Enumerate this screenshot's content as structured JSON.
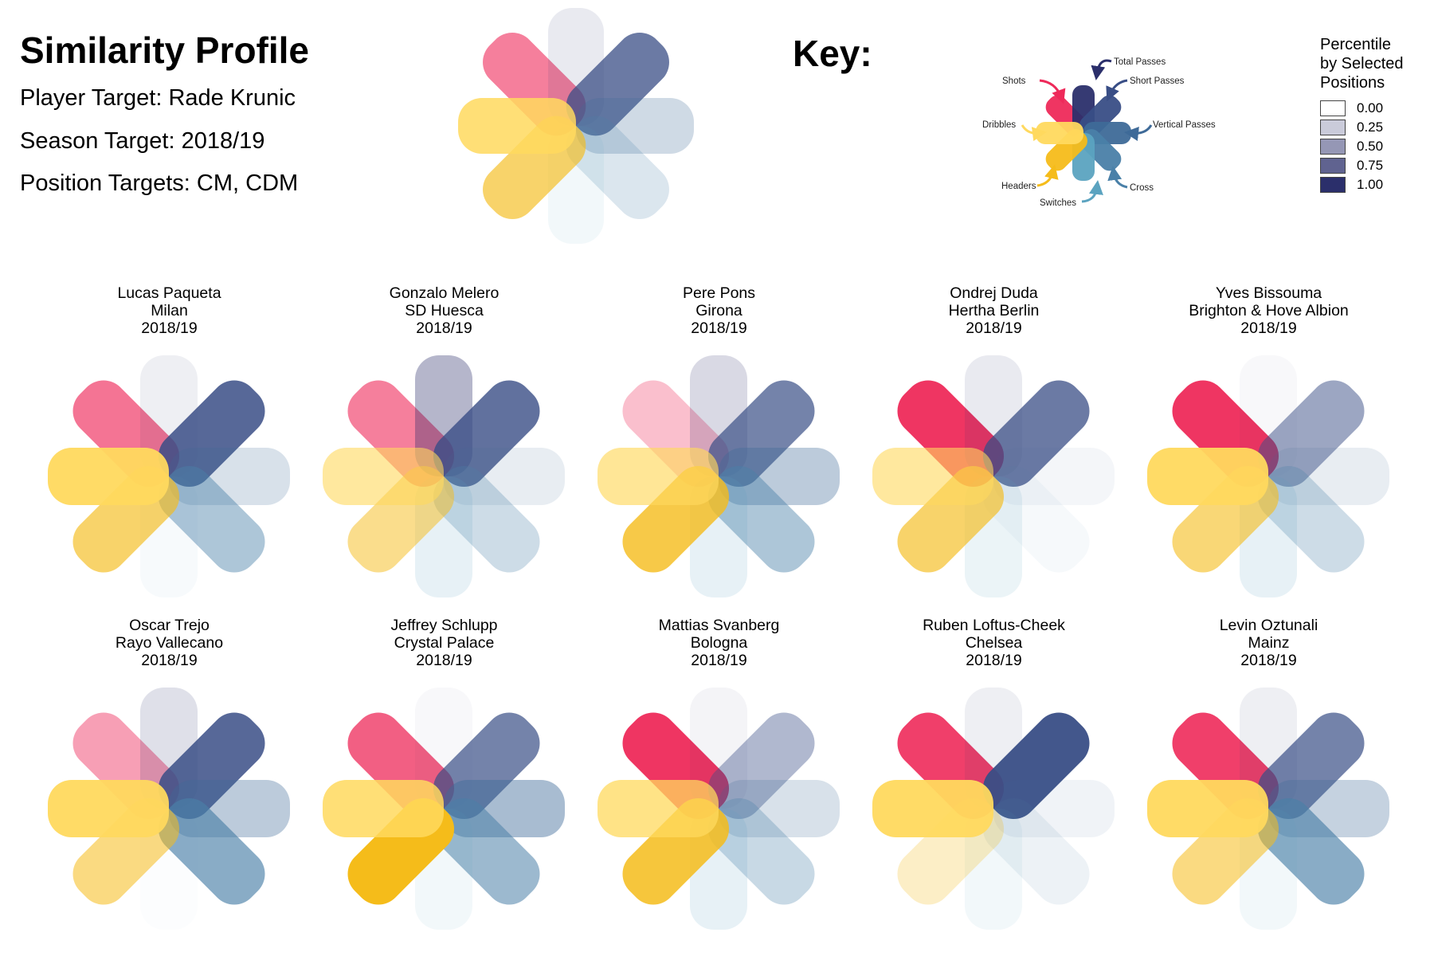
{
  "header": {
    "title": "Similarity Profile",
    "player_target": "Player Target: Rade Krunic",
    "season_target": "Season Target: 2018/19",
    "position_targets": "Position Targets: CM, CDM"
  },
  "key": {
    "title": "Key:",
    "labels": [
      "Shots",
      "Total Passes",
      "Short Passes",
      "Vertical Passes",
      "Cross",
      "Switches",
      "Headers",
      "Dribbles"
    ]
  },
  "legend": {
    "title_lines": [
      "Percentile",
      "by Selected",
      "Positions"
    ],
    "values": [
      "0.00",
      "0.25",
      "0.50",
      "0.75",
      "1.00"
    ],
    "color": "#2B2F6B"
  },
  "chart_data": {
    "type": "flower",
    "metrics": [
      "Shots",
      "Total Passes",
      "Short Passes",
      "Vertical Passes",
      "Cross",
      "Switches",
      "Headers",
      "Dribbles"
    ],
    "colors": [
      "#EE2A5A",
      "#2B2F6B",
      "#394E86",
      "#3E6A98",
      "#4A80A8",
      "#5BA3C0",
      "#F5BC1A",
      "#FFD95E"
    ],
    "value_scale": "percentile 0-1 shown as petal opacity",
    "target": {
      "name": "Rade Krunic",
      "values": [
        0.6,
        0.1,
        0.75,
        0.25,
        0.2,
        0.08,
        0.65,
        0.85
      ]
    },
    "players": [
      {
        "name": "Lucas Paqueta",
        "club": "Milan",
        "season": "2018/19",
        "values": [
          0.65,
          0.08,
          0.85,
          0.2,
          0.45,
          0.05,
          0.65,
          0.95
        ]
      },
      {
        "name": "Gonzalo Melero",
        "club": "SD Huesca",
        "season": "2018/19",
        "values": [
          0.6,
          0.35,
          0.8,
          0.12,
          0.28,
          0.15,
          0.5,
          0.6
        ]
      },
      {
        "name": "Pere Pons",
        "club": "Girona",
        "season": "2018/19",
        "values": [
          0.3,
          0.18,
          0.7,
          0.35,
          0.45,
          0.15,
          0.8,
          0.65
        ]
      },
      {
        "name": "Ondrej Duda",
        "club": "Hertha Berlin",
        "season": "2018/19",
        "values": [
          0.95,
          0.1,
          0.75,
          0.06,
          0.05,
          0.12,
          0.65,
          0.6
        ]
      },
      {
        "name": "Yves Bissouma",
        "club": "Brighton & Hove Albion",
        "season": "2018/19",
        "values": [
          0.95,
          0.03,
          0.5,
          0.12,
          0.28,
          0.15,
          0.6,
          0.95
        ]
      },
      {
        "name": "Oscar Trejo",
        "club": "Rayo Vallecano",
        "season": "2018/19",
        "values": [
          0.45,
          0.15,
          0.85,
          0.35,
          0.65,
          0.02,
          0.55,
          0.95
        ]
      },
      {
        "name": "Jeffrey Schlupp",
        "club": "Crystal Palace",
        "season": "2018/19",
        "values": [
          0.75,
          0.03,
          0.7,
          0.45,
          0.55,
          0.08,
          1.0,
          0.85
        ]
      },
      {
        "name": "Mattias Svanberg",
        "club": "Bologna",
        "season": "2018/19",
        "values": [
          0.95,
          0.05,
          0.4,
          0.2,
          0.3,
          0.15,
          0.85,
          0.75
        ]
      },
      {
        "name": "Ruben Loftus-Cheek",
        "club": "Chelsea",
        "season": "2018/19",
        "values": [
          0.9,
          0.08,
          0.95,
          0.08,
          0.1,
          0.08,
          0.25,
          0.95
        ]
      },
      {
        "name": "Levin Oztunali",
        "club": "Mainz",
        "season": "2018/19",
        "values": [
          0.9,
          0.08,
          0.7,
          0.3,
          0.65,
          0.08,
          0.55,
          0.95
        ]
      }
    ]
  }
}
